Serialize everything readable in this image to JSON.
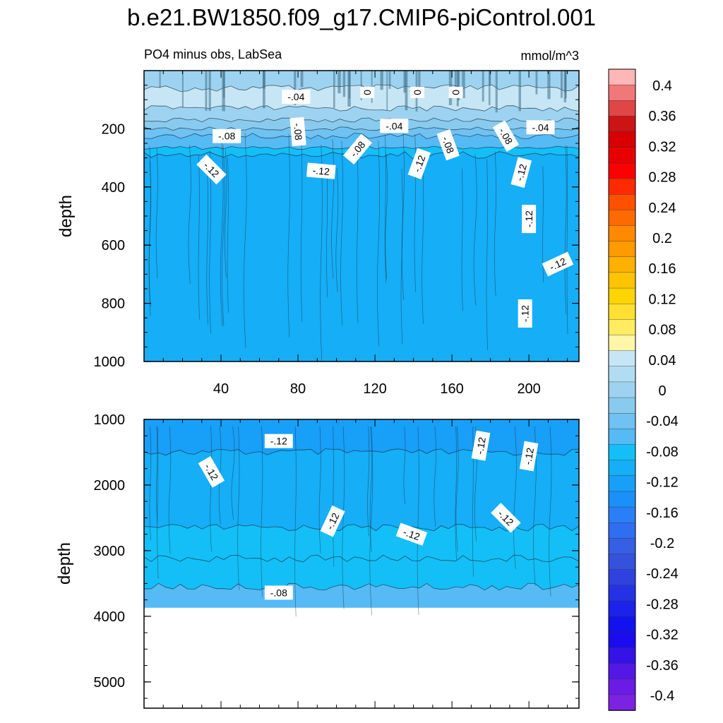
{
  "figure": {
    "title": "b.e21.BW1850.f09_g17.CMIP6-piControl.001",
    "left_subtitle": "PO4 minus obs, LabSea",
    "right_subtitle": "mmol/m^3"
  },
  "chart_data": [
    {
      "type": "contour",
      "panel": "upper",
      "title": "PO4 minus obs, LabSea",
      "units": "mmol/m^3",
      "xlabel": "",
      "ylabel": "depth",
      "xlim": [
        0,
        226
      ],
      "ylim": [
        1000,
        0
      ],
      "x_ticks": [
        40,
        80,
        120,
        160,
        200
      ],
      "y_ticks": [
        200,
        400,
        600,
        800,
        1000
      ],
      "bands": [
        {
          "from": 0,
          "to": 60,
          "value": -0.02
        },
        {
          "from": 60,
          "to": 130,
          "value": 0.02
        },
        {
          "from": 130,
          "to": 170,
          "value": -0.02
        },
        {
          "from": 170,
          "to": 200,
          "value": -0.04
        },
        {
          "from": 200,
          "to": 225,
          "value": -0.06
        },
        {
          "from": 225,
          "to": 265,
          "value": -0.08
        },
        {
          "from": 265,
          "to": 290,
          "value": -0.1
        },
        {
          "from": 290,
          "to": 1000,
          "value": -0.12
        }
      ],
      "contour_labels": [
        {
          "text": "-.04",
          "x": 79,
          "y": 90,
          "angle": 0
        },
        {
          "text": "0",
          "x": 116,
          "y": 75,
          "angle": 90
        },
        {
          "text": "0",
          "x": 142,
          "y": 75,
          "angle": 90
        },
        {
          "text": "0",
          "x": 162,
          "y": 75,
          "angle": 90
        },
        {
          "text": "-.04",
          "x": 130,
          "y": 190,
          "angle": 0
        },
        {
          "text": "-.04",
          "x": 206,
          "y": 195,
          "angle": 0
        },
        {
          "text": "-.08",
          "x": 43,
          "y": 225,
          "angle": 0
        },
        {
          "text": "-.08",
          "x": 80,
          "y": 210,
          "angle": -85
        },
        {
          "text": "-.08",
          "x": 111,
          "y": 270,
          "angle": 50
        },
        {
          "text": "-.08",
          "x": 158,
          "y": 255,
          "angle": -70
        },
        {
          "text": "-.08",
          "x": 188,
          "y": 225,
          "angle": -60
        },
        {
          "text": "-.12",
          "x": 35,
          "y": 340,
          "angle": -45
        },
        {
          "text": "-.12",
          "x": 92,
          "y": 345,
          "angle": -5
        },
        {
          "text": "-.12",
          "x": 143,
          "y": 320,
          "angle": 70
        },
        {
          "text": "-.12",
          "x": 196,
          "y": 350,
          "angle": 75
        },
        {
          "text": "-.12",
          "x": 200,
          "y": 510,
          "angle": 90
        },
        {
          "text": "-.12",
          "x": 215,
          "y": 665,
          "angle": 25
        },
        {
          "text": "-.12",
          "x": 198,
          "y": 835,
          "angle": 90
        }
      ]
    },
    {
      "type": "contour",
      "panel": "lower",
      "xlabel": "",
      "ylabel": "depth",
      "xlim": [
        0,
        226
      ],
      "ylim": [
        5400,
        1000
      ],
      "y_ticks": [
        1000,
        2000,
        3000,
        4000,
        5000
      ],
      "bottom_depth": 3870,
      "bands": [
        {
          "from": 1000,
          "to": 1500,
          "value": -0.14
        },
        {
          "from": 1500,
          "to": 2650,
          "value": -0.12
        },
        {
          "from": 2650,
          "to": 3120,
          "value": -0.1
        },
        {
          "from": 3120,
          "to": 3550,
          "value": -0.1
        },
        {
          "from": 3550,
          "to": 3870,
          "value": -0.08
        }
      ],
      "contour_labels": [
        {
          "text": "-.12",
          "x": 70,
          "y": 1330,
          "angle": 0
        },
        {
          "text": "-.12",
          "x": 35,
          "y": 1800,
          "angle": -60
        },
        {
          "text": "-.12",
          "x": 175,
          "y": 1400,
          "angle": 80
        },
        {
          "text": "-.12",
          "x": 200,
          "y": 1560,
          "angle": 80
        },
        {
          "text": "-.12",
          "x": 98,
          "y": 2550,
          "angle": 65
        },
        {
          "text": "-.12",
          "x": 139,
          "y": 2750,
          "angle": -20
        },
        {
          "text": "-.12",
          "x": 188,
          "y": 2500,
          "angle": -45
        },
        {
          "text": "-.08",
          "x": 70,
          "y": 3640,
          "angle": 0
        }
      ]
    },
    {
      "type": "colorbar",
      "levels": [
        0.4,
        0.36,
        0.32,
        0.28,
        0.24,
        0.2,
        0.16,
        0.12,
        0.08,
        0.04,
        0,
        -0.04,
        -0.08,
        -0.12,
        -0.16,
        -0.2,
        -0.24,
        -0.28,
        -0.32,
        -0.36,
        -0.4
      ],
      "tick_labels": [
        "0.4",
        "0.36",
        "0.32",
        "0.28",
        "0.24",
        "0.2",
        "0.16",
        "0.12",
        "0.08",
        "0.04",
        "0",
        "-0.04",
        "-0.08",
        "-0.12",
        "-0.16",
        "-0.2",
        "-0.24",
        "-0.28",
        "-0.32",
        "-0.36",
        "-0.4"
      ],
      "colors": [
        "#ffb6b6",
        "#f07878",
        "#e04646",
        "#cc1414",
        "#d80000",
        "#e80000",
        "#ff0000",
        "#ff2a00",
        "#ff5000",
        "#ff6a00",
        "#ff8a00",
        "#ff9a00",
        "#ffb000",
        "#ffc400",
        "#ffd400",
        "#ffe030",
        "#ffec60",
        "#fff6a8",
        "#c6e6f6",
        "#b2dcf2",
        "#9dd3f0",
        "#88cbef",
        "#6fc2f1",
        "#56baf5",
        "#14bff7",
        "#16aef6",
        "#189ff8",
        "#1a90f8",
        "#2a7ff6",
        "#2f6ef0",
        "#3560e6",
        "#3452dc",
        "#2f42e0",
        "#2432e6",
        "#1c22ea",
        "#1212ee",
        "#1a0cee",
        "#3512e8",
        "#5318e6",
        "#6a1ce4",
        "#7c22e2"
      ]
    }
  ]
}
